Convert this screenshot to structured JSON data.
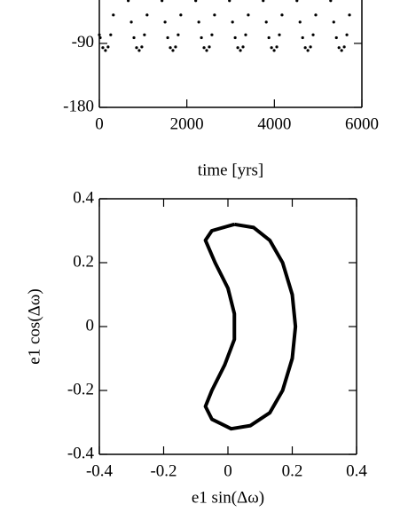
{
  "chart_data": [
    {
      "type": "scatter",
      "xlabel": "time  [yrs]",
      "color": "#000000",
      "x": [
        0,
        20,
        80,
        140,
        200,
        260,
        320,
        661,
        731,
        791,
        851,
        911,
        971,
        1031,
        1091,
        1432,
        1502,
        1562,
        1622,
        1682,
        1742,
        1802,
        1862,
        2203,
        2273,
        2333,
        2393,
        2453,
        2513,
        2573,
        2633,
        2974,
        3044,
        3104,
        3164,
        3224,
        3284,
        3344,
        3404,
        3745,
        3815,
        3875,
        3935,
        3995,
        4055,
        4115,
        4175,
        4516,
        4586,
        4646,
        4706,
        4766,
        4826,
        4886,
        4946,
        5287,
        5357,
        5417,
        5477,
        5537,
        5597,
        5657,
        5717
      ],
      "y": [
        -78,
        -82,
        -96,
        -100,
        -95,
        -78,
        -50,
        -30,
        -60,
        -82,
        -96,
        -100,
        -95,
        -78,
        -50,
        -30,
        -60,
        -82,
        -96,
        -100,
        -95,
        -78,
        -50,
        -30,
        -60,
        -82,
        -96,
        -100,
        -95,
        -78,
        -50,
        -30,
        -60,
        -82,
        -96,
        -100,
        -95,
        -78,
        -50,
        -30,
        -60,
        -82,
        -96,
        -100,
        -95,
        -78,
        -50,
        -30,
        -60,
        -82,
        -96,
        -100,
        -95,
        -78,
        -50,
        -30,
        -60,
        -82,
        -96,
        -100,
        -95,
        -78,
        -50
      ],
      "xlim": [
        0,
        6000
      ],
      "xticks": [
        0,
        2000,
        4000,
        6000
      ],
      "ylim": [
        -180,
        -29
      ],
      "yticks": [
        -180,
        -90
      ]
    },
    {
      "type": "line",
      "xlabel": "e1 sin(Δω)",
      "ylabel": "e1 cos(Δω)",
      "color": "#000000",
      "x": [
        0.02,
        0.08,
        0.13,
        0.17,
        0.2,
        0.21,
        0.2,
        0.17,
        0.13,
        0.07,
        0.01,
        -0.05,
        -0.07,
        -0.05,
        -0.01,
        0.02,
        0.02,
        0.0,
        -0.04,
        -0.07,
        -0.05,
        0.02
      ],
      "y": [
        0.32,
        0.31,
        0.27,
        0.2,
        0.1,
        0,
        -0.1,
        -0.2,
        -0.27,
        -0.31,
        -0.32,
        -0.29,
        -0.25,
        -0.2,
        -0.12,
        -0.04,
        0.04,
        0.12,
        0.2,
        0.27,
        0.3,
        0.32
      ],
      "xlim": [
        -0.4,
        0.4
      ],
      "xticks": [
        -0.4,
        -0.2,
        0,
        0.2,
        0.4
      ],
      "ylim": [
        -0.4,
        0.4
      ],
      "yticks": [
        -0.4,
        -0.2,
        0,
        0.2,
        0.4
      ]
    }
  ]
}
